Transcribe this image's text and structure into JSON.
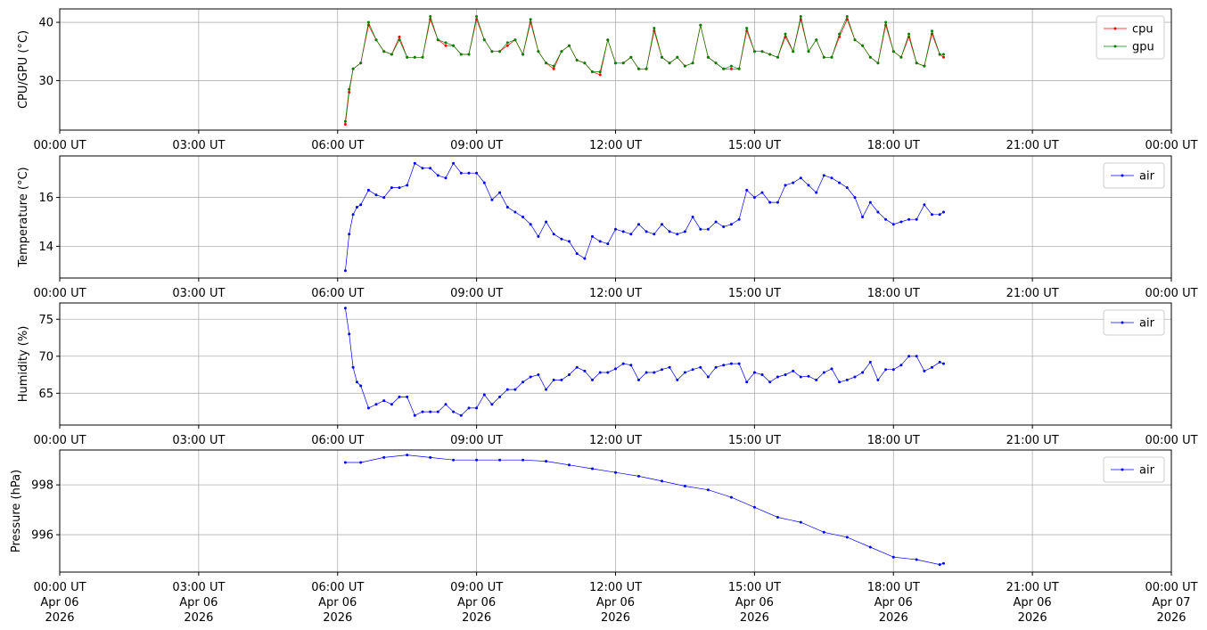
{
  "x_tick_labels": [
    "00:00 UT",
    "03:00 UT",
    "06:00 UT",
    "09:00 UT",
    "12:00 UT",
    "15:00 UT",
    "18:00 UT",
    "21:00 UT",
    "00:00 UT"
  ],
  "x_tick_dates": [
    [
      "Apr 06",
      "2026"
    ],
    [
      "Apr 06",
      "2026"
    ],
    [
      "Apr 06",
      "2026"
    ],
    [
      "Apr 06",
      "2026"
    ],
    [
      "Apr 06",
      "2026"
    ],
    [
      "Apr 06",
      "2026"
    ],
    [
      "Apr 06",
      "2026"
    ],
    [
      "Apr 06",
      "2026"
    ],
    [
      "Apr 07",
      "2026"
    ]
  ],
  "colors": {
    "cpu": "#ff0000",
    "gpu": "#008000",
    "air": "#0000ff",
    "grid": "#b0b0b0"
  },
  "chart_data": [
    {
      "type": "line",
      "ylabel": "CPU/GPU (°C)",
      "xlim": [
        "2026-04-06 00:00",
        "2026-04-07 00:00"
      ],
      "ylim": [
        21.5,
        42.3
      ],
      "yticks": [
        30,
        40
      ],
      "grid": true,
      "legend": "top-right",
      "series": [
        {
          "name": "cpu",
          "color": "#ff0000",
          "x": [
            "06:10",
            "06:15",
            "06:20",
            "06:30",
            "06:40",
            "06:50",
            "07:00",
            "07:10",
            "07:20",
            "07:30",
            "07:40",
            "07:50",
            "08:00",
            "08:10",
            "08:20",
            "08:30",
            "08:40",
            "08:50",
            "09:00",
            "09:10",
            "09:20",
            "09:30",
            "09:40",
            "09:50",
            "10:00",
            "10:10",
            "10:20",
            "10:30",
            "10:40",
            "10:50",
            "11:00",
            "11:10",
            "11:20",
            "11:30",
            "11:40",
            "11:50",
            "12:00",
            "12:10",
            "12:20",
            "12:30",
            "12:40",
            "12:50",
            "13:00",
            "13:10",
            "13:20",
            "13:30",
            "13:40",
            "13:50",
            "14:00",
            "14:10",
            "14:20",
            "14:30",
            "14:40",
            "14:50",
            "15:00",
            "15:10",
            "15:20",
            "15:30",
            "15:40",
            "15:50",
            "16:00",
            "16:10",
            "16:20",
            "16:30",
            "16:40",
            "16:50",
            "17:00",
            "17:10",
            "17:20",
            "17:30",
            "17:40",
            "17:50",
            "18:00",
            "18:10",
            "18:20",
            "18:30",
            "18:40",
            "18:50",
            "19:00",
            "19:05"
          ],
          "y": [
            22.5,
            28,
            32,
            33,
            39.5,
            37,
            35,
            34.5,
            37.5,
            34,
            34,
            34,
            40.5,
            37,
            36,
            36,
            34.5,
            34.5,
            40.5,
            37,
            35,
            35,
            36,
            37,
            34.5,
            40,
            35,
            33,
            32,
            35,
            36,
            33.5,
            33,
            31.5,
            31,
            37,
            33,
            33,
            34,
            32,
            32,
            38.5,
            34,
            33,
            34,
            32.5,
            33,
            39.5,
            34,
            33,
            32,
            32,
            32,
            38.5,
            35,
            35,
            34.5,
            34,
            37.5,
            35,
            40.5,
            35,
            37,
            34,
            34,
            37.5,
            40.5,
            37,
            36,
            34,
            33,
            39.5,
            35,
            34,
            37.5,
            33,
            32.5,
            38,
            34.5,
            34
          ]
        },
        {
          "name": "gpu",
          "color": "#008000",
          "x": [
            "06:10",
            "06:15",
            "06:20",
            "06:30",
            "06:40",
            "06:50",
            "07:00",
            "07:10",
            "07:20",
            "07:30",
            "07:40",
            "07:50",
            "08:00",
            "08:10",
            "08:20",
            "08:30",
            "08:40",
            "08:50",
            "09:00",
            "09:10",
            "09:20",
            "09:30",
            "09:40",
            "09:50",
            "10:00",
            "10:10",
            "10:20",
            "10:30",
            "10:40",
            "10:50",
            "11:00",
            "11:10",
            "11:20",
            "11:30",
            "11:40",
            "11:50",
            "12:00",
            "12:10",
            "12:20",
            "12:30",
            "12:40",
            "12:50",
            "13:00",
            "13:10",
            "13:20",
            "13:30",
            "13:40",
            "13:50",
            "14:00",
            "14:10",
            "14:20",
            "14:30",
            "14:40",
            "14:50",
            "15:00",
            "15:10",
            "15:20",
            "15:30",
            "15:40",
            "15:50",
            "16:00",
            "16:10",
            "16:20",
            "16:30",
            "16:40",
            "16:50",
            "17:00",
            "17:10",
            "17:20",
            "17:30",
            "17:40",
            "17:50",
            "18:00",
            "18:10",
            "18:20",
            "18:30",
            "18:40",
            "18:50",
            "19:00",
            "19:05"
          ],
          "y": [
            23,
            28.5,
            32,
            33,
            40,
            37,
            35,
            34.5,
            37,
            34,
            34,
            34,
            41,
            37,
            36.5,
            36,
            34.5,
            34.5,
            41,
            37,
            35,
            35,
            36.5,
            37,
            34.5,
            40.5,
            35,
            33,
            32.5,
            35,
            36,
            33.5,
            33,
            31.5,
            31.5,
            37,
            33,
            33,
            34,
            32,
            32,
            39,
            34,
            33,
            34,
            32.5,
            33,
            39.5,
            34,
            33,
            32,
            32.5,
            32,
            39,
            35,
            35,
            34.5,
            34,
            38,
            35,
            41,
            35,
            37,
            34,
            34,
            38,
            41,
            37,
            36,
            34,
            33,
            40,
            35,
            34,
            38,
            33,
            32.5,
            38.5,
            34.5,
            34.5
          ]
        }
      ]
    },
    {
      "type": "line",
      "ylabel": "Temperature (°C)",
      "xlim": [
        "2026-04-06 00:00",
        "2026-04-07 00:00"
      ],
      "ylim": [
        12.7,
        17.7
      ],
      "yticks": [
        14,
        16
      ],
      "grid": true,
      "legend": "top-right",
      "series": [
        {
          "name": "air",
          "color": "#0000ff",
          "x": [
            "06:10",
            "06:15",
            "06:20",
            "06:25",
            "06:30",
            "06:40",
            "06:50",
            "07:00",
            "07:10",
            "07:20",
            "07:30",
            "07:40",
            "07:50",
            "08:00",
            "08:10",
            "08:20",
            "08:30",
            "08:40",
            "08:50",
            "09:00",
            "09:10",
            "09:20",
            "09:30",
            "09:40",
            "09:50",
            "10:00",
            "10:10",
            "10:20",
            "10:30",
            "10:40",
            "10:50",
            "11:00",
            "11:10",
            "11:20",
            "11:30",
            "11:40",
            "11:50",
            "12:00",
            "12:10",
            "12:20",
            "12:30",
            "12:40",
            "12:50",
            "13:00",
            "13:10",
            "13:20",
            "13:30",
            "13:40",
            "13:50",
            "14:00",
            "14:10",
            "14:20",
            "14:30",
            "14:40",
            "14:50",
            "15:00",
            "15:10",
            "15:20",
            "15:30",
            "15:40",
            "15:50",
            "16:00",
            "16:10",
            "16:20",
            "16:30",
            "16:40",
            "16:50",
            "17:00",
            "17:10",
            "17:20",
            "17:30",
            "17:40",
            "17:50",
            "18:00",
            "18:10",
            "18:20",
            "18:30",
            "18:40",
            "18:50",
            "19:00",
            "19:05"
          ],
          "y": [
            13,
            14.5,
            15.3,
            15.6,
            15.7,
            16.3,
            16.1,
            16,
            16.4,
            16.4,
            16.5,
            17.4,
            17.2,
            17.2,
            16.9,
            16.8,
            17.4,
            17,
            17,
            17,
            16.6,
            15.9,
            16.2,
            15.6,
            15.4,
            15.2,
            14.9,
            14.4,
            15,
            14.5,
            14.3,
            14.2,
            13.7,
            13.5,
            14.4,
            14.2,
            14.1,
            14.7,
            14.6,
            14.5,
            14.9,
            14.6,
            14.5,
            14.9,
            14.6,
            14.5,
            14.6,
            15.2,
            14.7,
            14.7,
            15,
            14.8,
            14.9,
            15.1,
            16.3,
            16,
            16.2,
            15.8,
            15.8,
            16.5,
            16.6,
            16.8,
            16.5,
            16.2,
            16.9,
            16.8,
            16.6,
            16.4,
            16,
            15.2,
            15.8,
            15.4,
            15.1,
            14.9,
            15,
            15.1,
            15.1,
            15.7,
            15.3,
            15.3,
            15.4
          ]
        }
      ]
    },
    {
      "type": "line",
      "ylabel": "Humidity (%)",
      "xlim": [
        "2026-04-06 00:00",
        "2026-04-07 00:00"
      ],
      "ylim": [
        60.7,
        77.2
      ],
      "yticks": [
        65,
        70,
        75
      ],
      "grid": true,
      "legend": "top-right",
      "series": [
        {
          "name": "air",
          "color": "#0000ff",
          "x": [
            "06:10",
            "06:15",
            "06:20",
            "06:25",
            "06:30",
            "06:40",
            "06:50",
            "07:00",
            "07:10",
            "07:20",
            "07:30",
            "07:40",
            "07:50",
            "08:00",
            "08:10",
            "08:20",
            "08:30",
            "08:40",
            "08:50",
            "09:00",
            "09:10",
            "09:20",
            "09:30",
            "09:40",
            "09:50",
            "10:00",
            "10:10",
            "10:20",
            "10:30",
            "10:40",
            "10:50",
            "11:00",
            "11:10",
            "11:20",
            "11:30",
            "11:40",
            "11:50",
            "12:00",
            "12:10",
            "12:20",
            "12:30",
            "12:40",
            "12:50",
            "13:00",
            "13:10",
            "13:20",
            "13:30",
            "13:40",
            "13:50",
            "14:00",
            "14:10",
            "14:20",
            "14:30",
            "14:40",
            "14:50",
            "15:00",
            "15:10",
            "15:20",
            "15:30",
            "15:40",
            "15:50",
            "16:00",
            "16:10",
            "16:20",
            "16:30",
            "16:40",
            "16:50",
            "17:00",
            "17:10",
            "17:20",
            "17:30",
            "17:40",
            "17:50",
            "18:00",
            "18:10",
            "18:20",
            "18:30",
            "18:40",
            "18:50",
            "19:00",
            "19:05"
          ],
          "y": [
            76.5,
            73,
            68.5,
            66.5,
            66,
            63,
            63.5,
            64,
            63.5,
            64.5,
            64.5,
            62,
            62.5,
            62.5,
            62.5,
            63.5,
            62.5,
            62,
            63,
            63,
            64.8,
            63.5,
            64.5,
            65.5,
            65.5,
            66.5,
            67.2,
            67.5,
            65.5,
            66.8,
            66.8,
            67.5,
            68.5,
            68,
            66.8,
            67.8,
            67.8,
            68.3,
            69,
            68.8,
            66.8,
            67.8,
            67.8,
            68.2,
            68.5,
            66.8,
            67.8,
            68.2,
            68.5,
            67.2,
            68.5,
            68.8,
            69,
            69,
            66.5,
            67.8,
            67.5,
            66.5,
            67.2,
            67.5,
            68,
            67.2,
            67.3,
            66.8,
            67.8,
            68.3,
            66.5,
            66.8,
            67.2,
            67.8,
            69.2,
            66.8,
            68.2,
            68.2,
            68.8,
            70,
            70,
            68,
            68.5,
            69.2,
            69
          ]
        }
      ]
    },
    {
      "type": "line",
      "ylabel": "Pressure (hPa)",
      "xlim": [
        "2026-04-06 00:00",
        "2026-04-07 00:00"
      ],
      "ylim": [
        994.5,
        999.4
      ],
      "yticks": [
        996,
        998
      ],
      "grid": true,
      "legend": "top-right",
      "series": [
        {
          "name": "air",
          "color": "#0000ff",
          "x": [
            "06:10",
            "06:30",
            "07:00",
            "07:30",
            "08:00",
            "08:30",
            "09:00",
            "09:30",
            "10:00",
            "10:30",
            "11:00",
            "11:30",
            "12:00",
            "12:30",
            "13:00",
            "13:30",
            "14:00",
            "14:30",
            "15:00",
            "15:30",
            "16:00",
            "16:30",
            "17:00",
            "17:30",
            "18:00",
            "18:30",
            "19:00",
            "19:05"
          ],
          "y": [
            998.9,
            998.9,
            999.1,
            999.2,
            999.1,
            999.0,
            999.0,
            999.0,
            999.0,
            998.95,
            998.8,
            998.65,
            998.5,
            998.35,
            998.15,
            997.95,
            997.8,
            997.5,
            997.1,
            996.7,
            996.5,
            996.1,
            995.9,
            995.5,
            995.1,
            995.0,
            994.8,
            994.85
          ]
        }
      ]
    }
  ]
}
